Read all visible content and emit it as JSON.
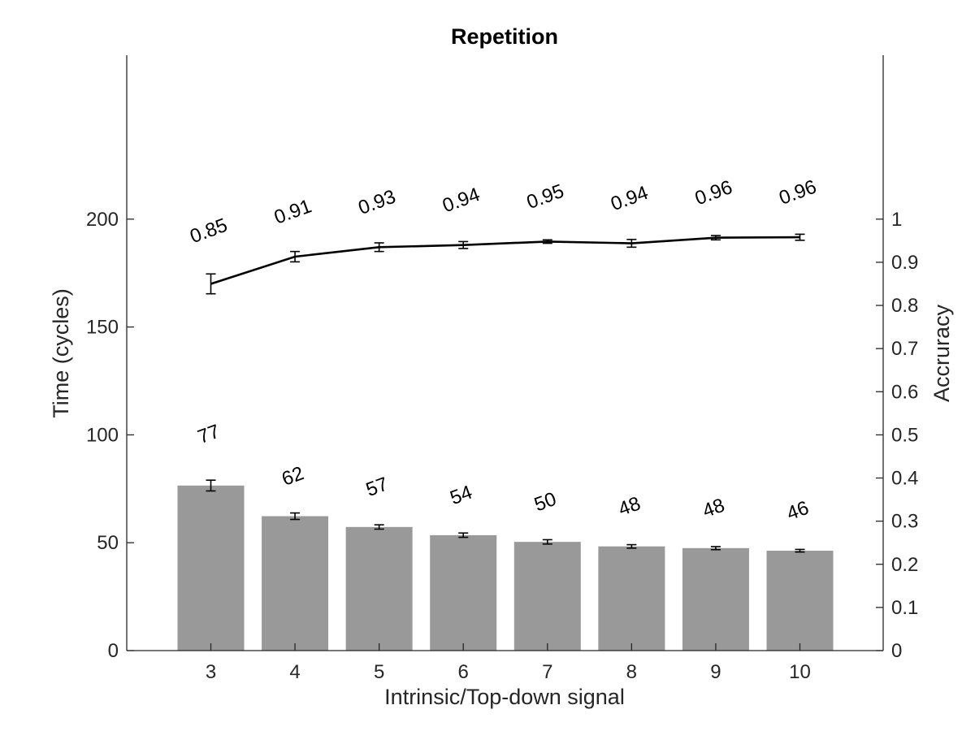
{
  "chart_data": {
    "type": "bar",
    "title": "Repetition",
    "xlabel": "Intrinsic/Top-down signal",
    "ylabel": "Time (cycles)",
    "y2label": "Accruracy",
    "categories": [
      "3",
      "4",
      "5",
      "6",
      "7",
      "8",
      "9",
      "10"
    ],
    "ylim": [
      0,
      200
    ],
    "y_ticks": [
      0,
      50,
      100,
      150,
      200
    ],
    "y2lim": [
      0,
      1
    ],
    "y2_ticks": [
      0,
      0.1,
      0.2,
      0.3,
      0.4,
      0.5,
      0.6,
      0.7,
      0.8,
      0.9,
      1
    ],
    "grid": false,
    "series": [
      {
        "type": "bar",
        "axis": "left",
        "values": [
          76.5,
          62.3,
          57.3,
          53.5,
          50.4,
          48.3,
          47.5,
          46.3
        ],
        "errors": [
          2.5,
          1.5,
          1.0,
          1.0,
          1.0,
          0.8,
          0.7,
          0.6
        ],
        "labels": [
          "77",
          "62",
          "57",
          "54",
          "50",
          "48",
          "48",
          "46"
        ],
        "color": "#999999"
      },
      {
        "type": "line",
        "axis": "right",
        "values": [
          0.85,
          0.913,
          0.935,
          0.94,
          0.948,
          0.944,
          0.957,
          0.958
        ],
        "errors": [
          0.023,
          0.012,
          0.01,
          0.008,
          0.004,
          0.009,
          0.005,
          0.007
        ],
        "labels": [
          "0.85",
          "0.91",
          "0.93",
          "0.94",
          "0.95",
          "0.94",
          "0.96",
          "0.96"
        ],
        "color": "#000000"
      }
    ]
  }
}
